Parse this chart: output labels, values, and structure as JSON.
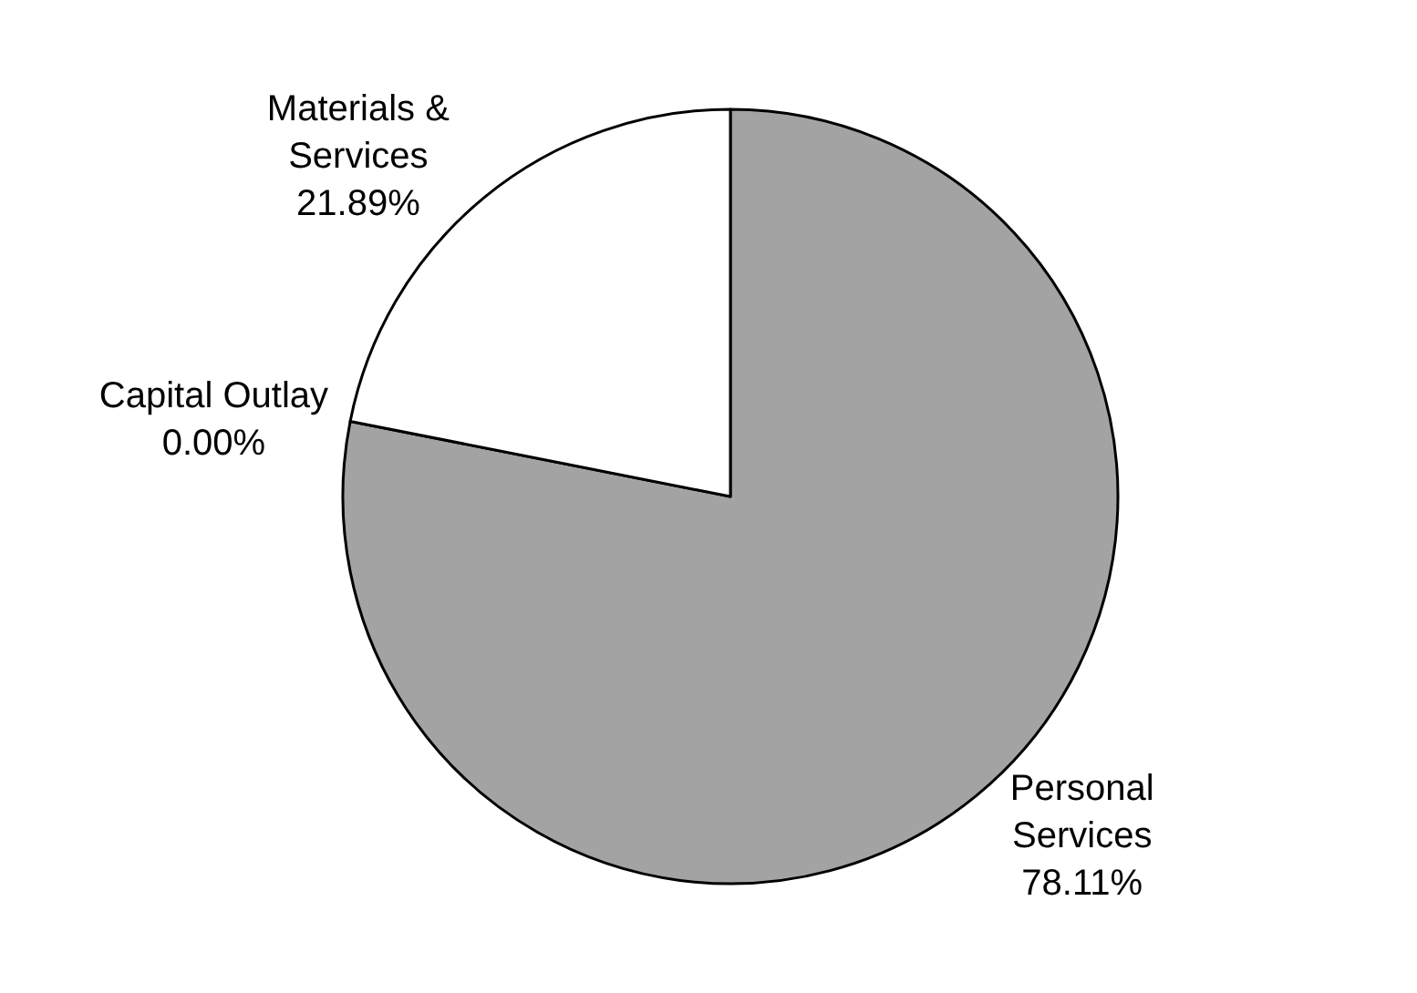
{
  "chart_data": {
    "type": "pie",
    "categories": [
      "Personal Services",
      "Capital Outlay",
      "Materials & Services"
    ],
    "values": [
      78.11,
      0,
      21.89
    ],
    "value_labels": [
      "78.11%",
      "0.00%",
      "21.89%"
    ],
    "colors": [
      "#a3a3a3",
      "#ffffff",
      "#ffffff"
    ],
    "legend": false
  }
}
